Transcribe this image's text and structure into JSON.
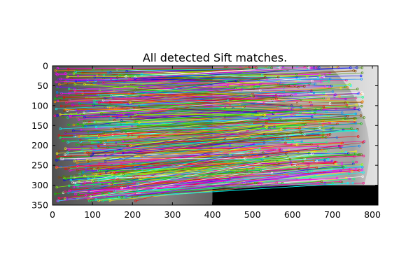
{
  "chart_data": {
    "type": "scatter",
    "title": "All detected Sift matches.",
    "xlabel": "",
    "ylabel": "",
    "xlim": [
      0,
      814
    ],
    "ylim": [
      350,
      0
    ],
    "y_inverted": true,
    "grid": false,
    "x_ticks": [
      "0",
      "100",
      "200",
      "300",
      "400",
      "500",
      "600",
      "700",
      "800"
    ],
    "y_ticks": [
      "0",
      "50",
      "100",
      "150",
      "200",
      "250",
      "300",
      "350"
    ],
    "background_image": "two grayscale face photos placed side by side (left 400 wide x 350 tall, right 414 wide x 300 tall, black below)",
    "match_count_estimate": 500,
    "match_colors": [
      "#ff0000",
      "#00cc00",
      "#0000ff",
      "#ffff00",
      "#00ffff",
      "#ff00ff",
      "#ff8800",
      "#8800ff",
      "#00ff88",
      "#ff0088",
      "#88ff00",
      "#0088ff",
      "#ffffff",
      "#884400",
      "#448800"
    ]
  }
}
